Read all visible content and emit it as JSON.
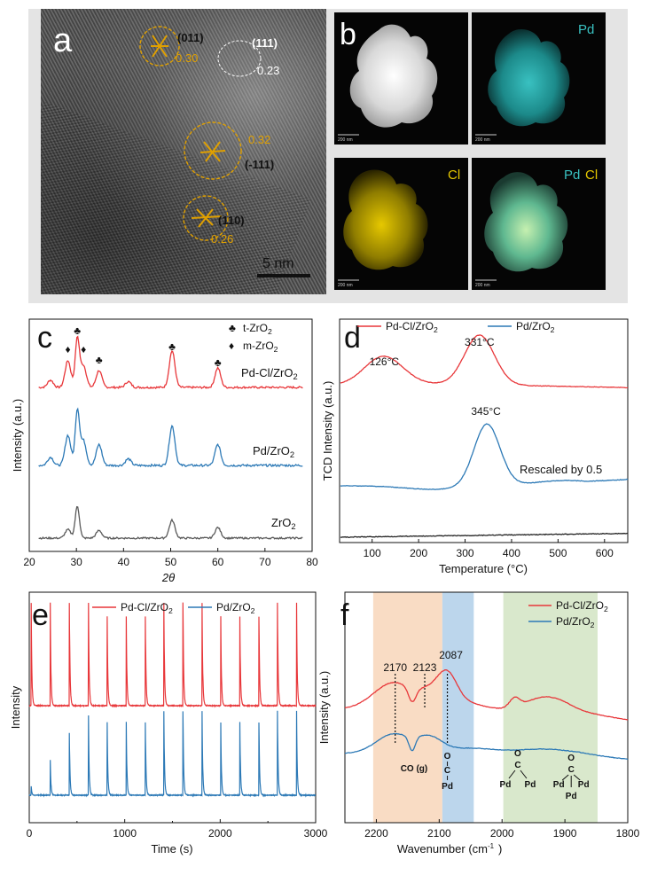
{
  "panel_a": {
    "letter": "a",
    "annotations": [
      {
        "plane": "(011)",
        "d": "0.30"
      },
      {
        "plane": "(111)",
        "d": "0.23"
      },
      {
        "plane": "(-111)",
        "d": "0.32"
      },
      {
        "plane": "(110)",
        "d": "0.26"
      }
    ],
    "scale_bar": "5 nm"
  },
  "panel_b": {
    "letter": "b",
    "maps": [
      {
        "label": "",
        "scale": "200 nm"
      },
      {
        "label": "Pd",
        "scale": "200 nm"
      },
      {
        "label": "Cl",
        "scale": "200 nm"
      },
      {
        "label_pd": "Pd",
        "label_cl": "Cl",
        "scale": "200 nm"
      }
    ]
  },
  "colors": {
    "red": "#e8373a",
    "blue": "#2c79b6",
    "grey": "#5a5a5a",
    "orange": "#e0a000",
    "cyan": "#39c1c1",
    "yellow": "#e6c800"
  },
  "chart_data": [
    {
      "panel": "c",
      "type": "line",
      "xlabel": "2θ",
      "ylabel": "Intensity (a.u.)",
      "xlim": [
        20,
        80
      ],
      "xticks": [
        20,
        30,
        40,
        50,
        60,
        70,
        80
      ],
      "legend": [
        {
          "symbol": "♣",
          "label": "t-ZrO2"
        },
        {
          "symbol": "♦",
          "label": "m-ZrO2"
        }
      ],
      "series": [
        {
          "name": "Pd-Cl/ZrO2",
          "color": "#e8373a",
          "peaks": [
            [
              24.5,
              0.15
            ],
            [
              28.2,
              0.55
            ],
            [
              30.2,
              1.0
            ],
            [
              31.5,
              0.45
            ],
            [
              34.8,
              0.35
            ],
            [
              41,
              0.12
            ],
            [
              50.3,
              0.75
            ],
            [
              60,
              0.4
            ]
          ]
        },
        {
          "name": "Pd/ZrO2",
          "color": "#2c79b6",
          "peaks": [
            [
              24.5,
              0.15
            ],
            [
              28.2,
              0.55
            ],
            [
              30.2,
              1.0
            ],
            [
              31.5,
              0.45
            ],
            [
              34.8,
              0.38
            ],
            [
              41,
              0.12
            ],
            [
              50.3,
              0.72
            ],
            [
              60,
              0.38
            ]
          ]
        },
        {
          "name": "ZrO2",
          "color": "#5a5a5a",
          "peaks": [
            [
              28.2,
              0.2
            ],
            [
              30.2,
              0.75
            ],
            [
              34.8,
              0.18
            ],
            [
              50.3,
              0.42
            ],
            [
              60,
              0.25
            ]
          ]
        }
      ],
      "markers": [
        {
          "x": 28.2,
          "symbol": "♦"
        },
        {
          "x": 30.2,
          "symbol": "♣"
        },
        {
          "x": 31.5,
          "symbol": "♦"
        },
        {
          "x": 34.8,
          "symbol": "♣"
        },
        {
          "x": 50.3,
          "symbol": "♣"
        },
        {
          "x": 60,
          "symbol": "♣"
        }
      ],
      "labels": [
        "Pd-Cl/ZrO2",
        "Pd/ZrO2",
        "ZrO2"
      ]
    },
    {
      "panel": "d",
      "type": "line",
      "xlabel": "Temperature (°C)",
      "ylabel": "TCD Intensity (a.u.)",
      "xlim": [
        30,
        650
      ],
      "xticks": [
        100,
        200,
        300,
        400,
        500,
        600
      ],
      "series": [
        {
          "name": "Pd-Cl/ZrO2",
          "color": "#e8373a",
          "peaks": [
            [
              126,
              0.28
            ],
            [
              331,
              0.55
            ]
          ]
        },
        {
          "name": "Pd/ZrO2",
          "color": "#2c79b6",
          "peaks": [
            [
              345,
              0.75
            ]
          ]
        },
        {
          "name": "ZrO2",
          "color": "#222222",
          "peaks": []
        }
      ],
      "annotations": [
        "126°C",
        "331°C",
        "345°C",
        "Rescaled by 0.5"
      ]
    },
    {
      "panel": "e",
      "type": "line",
      "xlabel": "Time (s)",
      "ylabel": "Intensity",
      "xlim": [
        0,
        3000
      ],
      "xticks": [
        0,
        1000,
        2000,
        3000
      ],
      "series": [
        {
          "name": "Pd-Cl/ZrO2",
          "color": "#e8373a",
          "pulse_times": [
            20,
            220,
            420,
            620,
            815,
            1015,
            1215,
            1410,
            1610,
            1810,
            2005,
            2205,
            2405,
            2600,
            2800
          ]
        },
        {
          "name": "Pd/ZrO2",
          "color": "#2c79b6",
          "pulse_times": [
            20,
            220,
            420,
            620,
            815,
            1015,
            1215,
            1410,
            1610,
            1810,
            2005,
            2205,
            2405,
            2600,
            2800
          ],
          "pulse_heights": [
            0.1,
            0.4,
            0.7,
            0.9,
            0.95,
            0.95,
            0.95,
            0.95,
            0.95,
            0.95,
            0.95,
            0.95,
            0.95,
            0.95,
            0.95
          ]
        }
      ]
    },
    {
      "panel": "f",
      "type": "line",
      "xlabel": "Wavenumber (cm-1)",
      "ylabel": "Intensity (a.u.)",
      "xlim": [
        2250,
        1800
      ],
      "xticks": [
        2200,
        2100,
        2000,
        1900,
        1800
      ],
      "bands": [
        {
          "from": 2205,
          "to": 2095,
          "color": "#f9dcc4"
        },
        {
          "from": 2095,
          "to": 2045,
          "color": "#bcd6ec"
        },
        {
          "from": 1998,
          "to": 1848,
          "color": "#d9e8cc"
        }
      ],
      "vlines": [
        2170,
        2123,
        2087
      ],
      "vline_labels": [
        "2170",
        "2123",
        "2087"
      ],
      "series": [
        {
          "name": "Pd-Cl/ZrO2",
          "color": "#e8373a"
        },
        {
          "name": "Pd/ZrO2",
          "color": "#2c79b6"
        }
      ],
      "bottom_labels": {
        "co_gas": "CO (g)",
        "o": "O",
        "c": "C",
        "pd": "Pd"
      }
    }
  ],
  "text": {
    "c_letter": "c",
    "d_letter": "d",
    "e_letter": "e",
    "f_letter": "f",
    "c_ylabel": "Intensity (a.u.)",
    "c_xlabel": "2θ",
    "d_ylabel": "TCD Intensity (a.u.)",
    "d_xlabel": "Temperature (°C)",
    "e_ylabel": "Intensity",
    "e_xlabel": "Time (s)",
    "f_ylabel": "Intensity (a.u.)",
    "f_xlabel": "Wavenumber (cm⁻¹)",
    "leg_red": "Pd-Cl/ZrO2",
    "leg_blue": "Pd/ZrO2",
    "d_peak1": "126°C",
    "d_peak2": "331°C",
    "d_peak3": "345°C",
    "d_rescaled": "Rescaled by 0.5",
    "c_label_red": "Pd-Cl/ZrO2",
    "c_label_blue": "Pd/ZrO2",
    "c_label_grey": "ZrO2",
    "c_leg_t": "t-ZrO2",
    "c_leg_m": "m-ZrO2",
    "f_v1": "2170",
    "f_v2": "2123",
    "f_v3": "2087",
    "f_co": "CO (g)"
  }
}
